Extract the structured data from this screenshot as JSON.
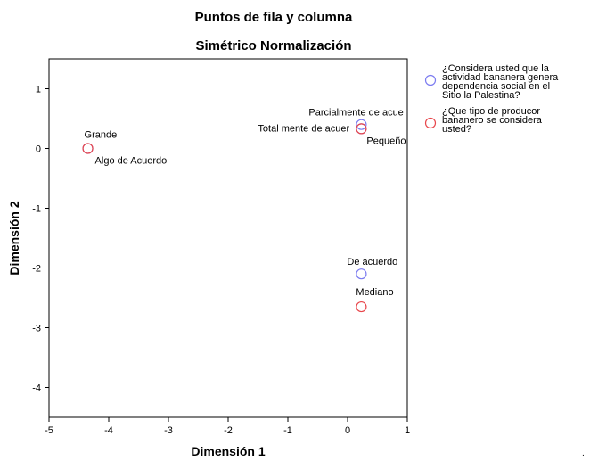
{
  "chart_data": {
    "type": "scatter",
    "title": "Puntos de fila y columna",
    "subtitle": "Simétrico Normalización",
    "xlabel": "Dimensión 1",
    "ylabel": "Dimensión 2",
    "xlim": [
      -5,
      1
    ],
    "ylim": [
      -4.5,
      1.5
    ],
    "xticks": [
      "-5",
      "-4",
      "-3",
      "-2",
      "-1",
      "0",
      "1"
    ],
    "yticks": [
      "1",
      "0",
      "-1",
      "-2",
      "-3",
      "-4"
    ],
    "grid": false,
    "legend_position": "right",
    "series": [
      {
        "name": "¿Considera usted que la actividad bananera genera dependencia social en el Sitio la Palestina?",
        "legend_lines": [
          "¿Considera usted que la",
          "actividad bananera genera",
          "dependencia social en el",
          "Sitio la Palestina?"
        ],
        "color": "#7b7bf0",
        "points": [
          {
            "label": "Algo de Acuerdo",
            "x": -4.35,
            "y": 0.0
          },
          {
            "label": "Parcialmente de acue",
            "x": 0.23,
            "y": 0.4
          },
          {
            "label": "Total mente de acuer",
            "x": 0.23,
            "y": 0.33
          },
          {
            "label": "De acuerdo",
            "x": 0.23,
            "y": -2.1
          }
        ]
      },
      {
        "name": "¿Que tipo de producor bananero se considera usted?",
        "legend_lines": [
          "¿Que tipo de producor",
          "bananero se considera",
          "usted?"
        ],
        "color": "#e8474c",
        "points": [
          {
            "label": "Grande",
            "x": -4.35,
            "y": 0.0
          },
          {
            "label": "Pequeño",
            "x": 0.23,
            "y": 0.33
          },
          {
            "label": "Mediano",
            "x": 0.23,
            "y": -2.65
          }
        ]
      }
    ]
  }
}
